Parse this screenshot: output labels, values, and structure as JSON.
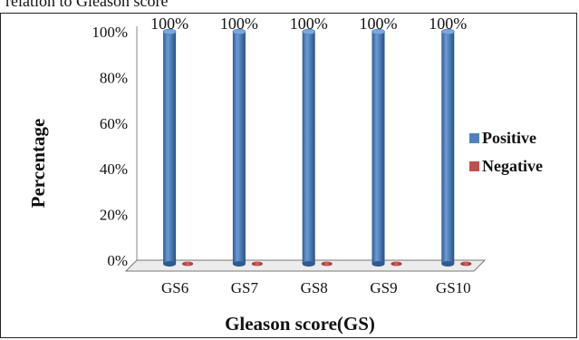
{
  "caption": "relation to Gleason score",
  "chart_data": {
    "type": "bar",
    "categories": [
      "GS6",
      "GS7",
      "GS8",
      "GS9",
      "GS10"
    ],
    "series": [
      {
        "name": "Positive",
        "values": [
          100,
          100,
          100,
          100,
          100
        ],
        "color": "#4f81bd"
      },
      {
        "name": "Negative",
        "values": [
          0,
          0,
          0,
          0,
          0
        ],
        "color": "#c0504d"
      }
    ],
    "data_labels": [
      "100%",
      "100%",
      "100%",
      "100%",
      "100%"
    ],
    "xlabel": "Gleason score(GS)",
    "ylabel": "Percentage",
    "yticks": [
      "0%",
      "20%",
      "40%",
      "60%",
      "80%",
      "100%"
    ],
    "ylim": [
      0,
      100
    ],
    "legend_position": "right",
    "style": "3d-cylinder"
  }
}
